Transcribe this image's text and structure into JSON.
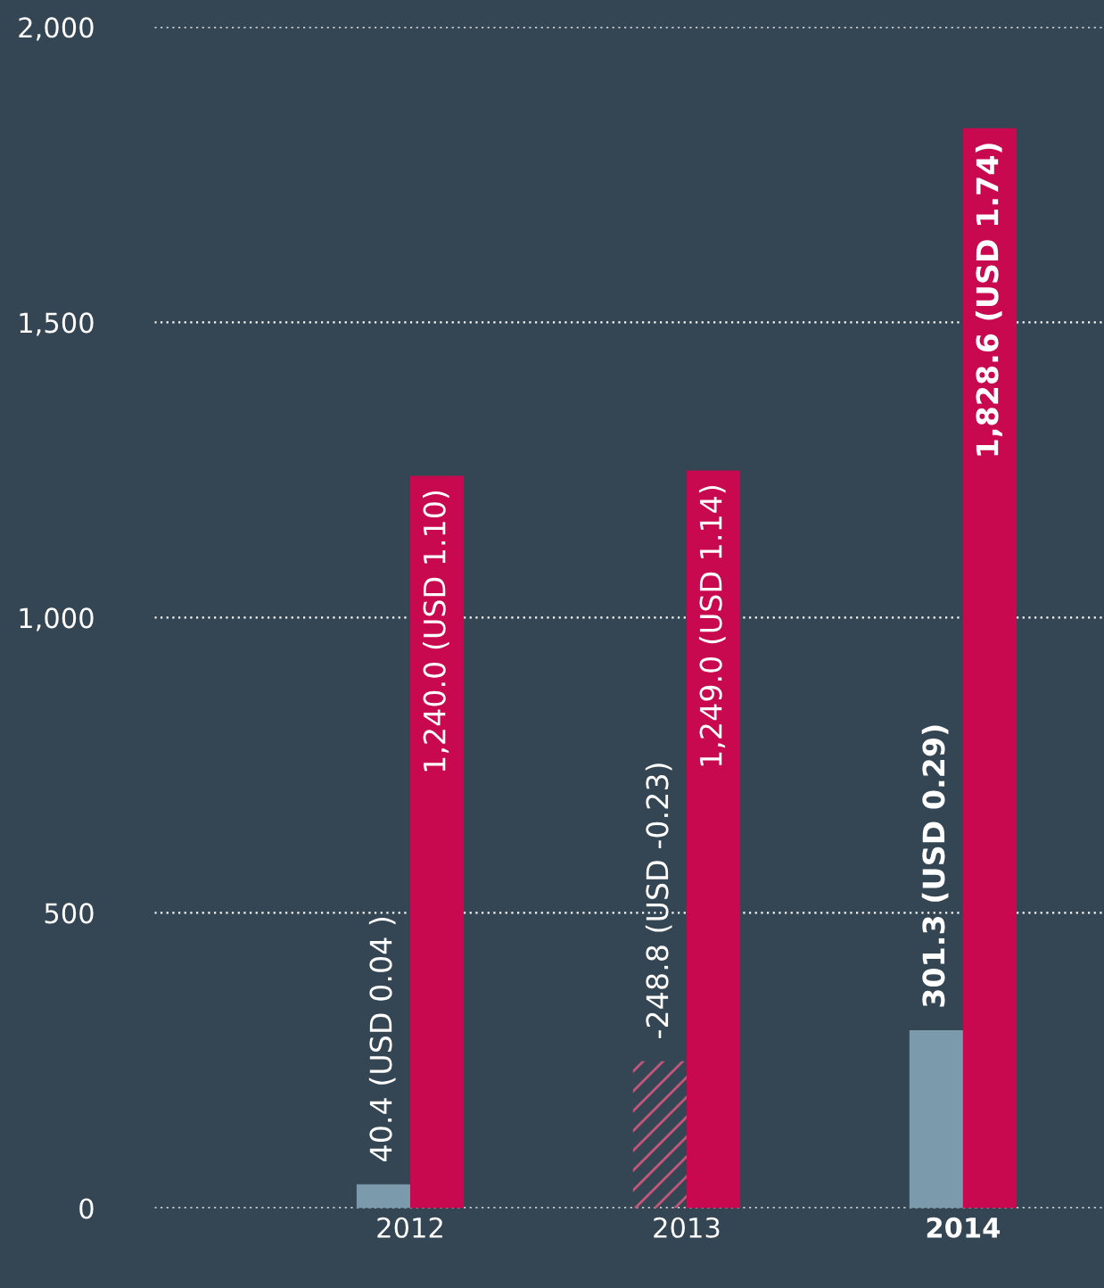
{
  "chart_data": {
    "type": "bar",
    "categories": [
      "2012",
      "2013",
      "2014"
    ],
    "series": [
      {
        "color": "#7b9aab",
        "colors": [
          "#7b9aab",
          "#c4567a",
          "#7b9aab"
        ],
        "values": [
          40.4,
          -248.8,
          301.3
        ],
        "base": [
          0,
          248.8,
          0
        ],
        "value_labels": [
          "40.4 (USD 0.04 )",
          "-248.8 (USD -0.23)",
          "301.3 (USD 0.29)"
        ]
      },
      {
        "color": "#c8084f",
        "values": [
          1240.0,
          1249.0,
          1828.6
        ],
        "value_labels": [
          "1,240.0 (USD 1.10)",
          "1,249.0 (USD 1.14)",
          "1,828.6 (USD 1.74)"
        ]
      }
    ],
    "ylim": [
      0,
      2000
    ],
    "yticks": [
      {
        "value": 0,
        "label": "0"
      },
      {
        "value": 500,
        "label": "500"
      },
      {
        "value": 1000,
        "label": "1,000"
      },
      {
        "value": 1500,
        "label": "1,500"
      },
      {
        "value": 2000,
        "label": "2,000"
      }
    ],
    "grid": "y",
    "legend": false
  }
}
